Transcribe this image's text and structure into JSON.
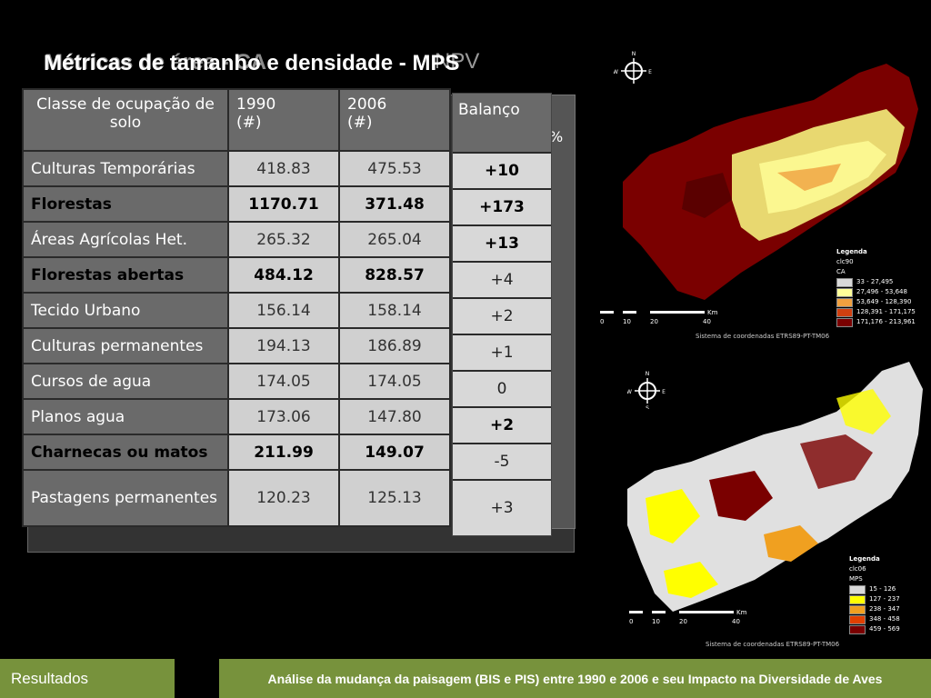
{
  "title": {
    "layer1": "Métricas de tamanho e densidade -  MPS",
    "layer2": "Métricas de área - CA",
    "suffix": "NPV"
  },
  "table": {
    "headers": {
      "col1": "Classe de ocupação de solo",
      "col2": "1990\n(#)",
      "col3": "2006\n(#)",
      "balanco": "Balanço",
      "pct": "%"
    },
    "rows": [
      {
        "label": "Culturas Temporárias",
        "v1990": "418.83",
        "v2006": "475.53",
        "balanco": "+10",
        "bold": false,
        "bal_bold": true
      },
      {
        "label": "Florestas",
        "v1990": "1170.71",
        "v2006": "371.48",
        "balanco": "+173",
        "bold": true,
        "bal_bold": true
      },
      {
        "label": "Áreas Agrícolas Het.",
        "v1990": "265.32",
        "v2006": "265.04",
        "balanco": "+13",
        "bold": false,
        "bal_bold": true
      },
      {
        "label": "Florestas abertas",
        "v1990": "484.12",
        "v2006": "828.57",
        "balanco": "+4",
        "bold": true,
        "bal_bold": false
      },
      {
        "label": "Tecido Urbano",
        "v1990": "156.14",
        "v2006": "158.14",
        "balanco": "+2",
        "bold": false,
        "bal_bold": false
      },
      {
        "label": "Culturas permanentes",
        "v1990": "194.13",
        "v2006": "186.89",
        "balanco": "+1",
        "bold": false,
        "bal_bold": false
      },
      {
        "label": "Cursos de agua",
        "v1990": "174.05",
        "v2006": "174.05",
        "balanco": "0",
        "bold": false,
        "bal_bold": false
      },
      {
        "label": "Planos agua",
        "v1990": "173.06",
        "v2006": "147.80",
        "balanco": "+2",
        "bold": false,
        "bal_bold": true
      },
      {
        "label": "Charnecas ou matos",
        "v1990": "211.99",
        "v2006": "149.07",
        "balanco": "-5",
        "bold": true,
        "bal_bold": false
      },
      {
        "label": "Pastagens permanentes",
        "v1990": "120.23",
        "v2006": "125.13",
        "balanco": "+3",
        "bold": false,
        "bal_bold": false
      }
    ]
  },
  "map_top": {
    "legend_title": "Legenda",
    "legend_sub": "clc90",
    "legend_metric": "CA",
    "legend_items": [
      {
        "label": "33 - 27,495",
        "color": "#d9d9d9"
      },
      {
        "label": "27,496 - 53,648",
        "color": "#ffff99"
      },
      {
        "label": "53,649 - 128,390",
        "color": "#f0a040"
      },
      {
        "label": "128,391 - 171,175",
        "color": "#d04010"
      },
      {
        "label": "171,176 - 213,961",
        "color": "#7a0000"
      }
    ],
    "scale_labels": [
      "0",
      "10",
      "20",
      "40"
    ],
    "scale_unit": "Km",
    "crs": "Sistema de coordenadas ETRS89-PT-TM06"
  },
  "map_bottom": {
    "legend_title": "Legenda",
    "legend_sub": "clc06",
    "legend_metric": "MPS",
    "legend_items": [
      {
        "label": "15 - 126",
        "color": "#d9d9d9"
      },
      {
        "label": "127 - 237",
        "color": "#ffff00"
      },
      {
        "label": "238 - 347",
        "color": "#f0a020"
      },
      {
        "label": "348 - 458",
        "color": "#e04000"
      },
      {
        "label": "459 - 569",
        "color": "#7a0000"
      }
    ],
    "scale_labels": [
      "0",
      "10",
      "20",
      "40"
    ],
    "scale_unit": "Km",
    "crs": "Sistema de coordenadas ETRS89-PT-TM06"
  },
  "compass": {
    "n": "N",
    "s": "S",
    "e": "E",
    "w": "W"
  },
  "footer": {
    "left": "Resultados",
    "right": "Análise da mudança da paisagem (BIS e PIS) entre 1990 e 2006 e seu Impacto na Diversidade de Aves"
  }
}
